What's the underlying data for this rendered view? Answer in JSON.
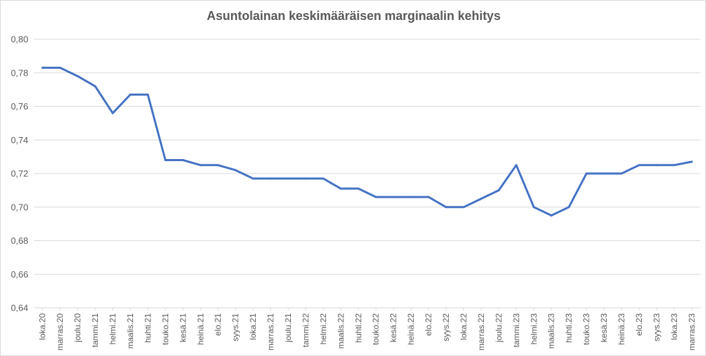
{
  "chart_data": {
    "type": "line",
    "title": "Asuntolainan keskimääräisen marginaalin kehitys",
    "xlabel": "",
    "ylabel": "",
    "ylim": [
      0.64,
      0.8
    ],
    "yticks": [
      "0,64",
      "0,66",
      "0,68",
      "0,70",
      "0,72",
      "0,74",
      "0,76",
      "0,78",
      "0,80"
    ],
    "grid": true,
    "legend": "none",
    "line_color": "#4472c4",
    "categories": [
      "loka.20",
      "marras.20",
      "joulu.20",
      "tammi.21",
      "helmi.21",
      "maalis.21",
      "huhti.21",
      "touko.21",
      "kesä.21",
      "heinä.21",
      "elo.21",
      "syys.21",
      "loka.21",
      "marras.21",
      "joulu.21",
      "tammi.22",
      "helmi.22",
      "maalis.22",
      "huhti.22",
      "touko.22",
      "kesä.22",
      "heinä.22",
      "elo.22",
      "syys.22",
      "loka.22",
      "marras.22",
      "joulu.22",
      "tammi.23",
      "helmi.23",
      "maalis.23",
      "huhti.23",
      "touko.23",
      "kesä.23",
      "heinä.23",
      "elo.23",
      "syys.23",
      "loka.23",
      "marras.23"
    ],
    "series": [
      {
        "values": [
          0.783,
          0.783,
          0.778,
          0.772,
          0.756,
          0.767,
          0.767,
          0.728,
          0.728,
          0.725,
          0.725,
          0.722,
          0.717,
          0.717,
          0.717,
          0.717,
          0.717,
          0.711,
          0.711,
          0.706,
          0.706,
          0.706,
          0.706,
          0.7,
          0.7,
          0.705,
          0.71,
          0.725,
          0.7,
          0.695,
          0.7,
          0.72,
          0.72,
          0.72,
          0.725,
          0.725,
          0.725,
          0.727
        ]
      }
    ]
  }
}
